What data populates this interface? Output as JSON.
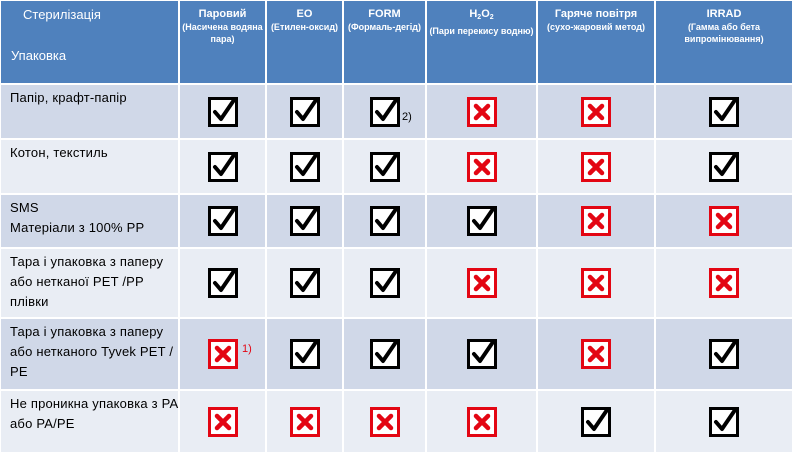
{
  "header": {
    "corner_top": "Стерилізація",
    "corner_bottom": "Упаковка",
    "columns": [
      {
        "title": "Паровий",
        "subtitle": "(Насичена водяна пара)"
      },
      {
        "title": "EO",
        "subtitle": "(Етилен-оксид)"
      },
      {
        "title": "FORM",
        "subtitle": "(Формаль-дегід)"
      },
      {
        "title_main": "H",
        "title_sub1": "2",
        "title_mid": "O",
        "title_sub2": "2",
        "subtitle": "(Пари перекису водню)"
      },
      {
        "title": "Гаряче повітря",
        "subtitle": "(сухо-жаровий метод)"
      },
      {
        "title": "IRRAD",
        "subtitle": "(Гамма або бета випромінювання)"
      }
    ]
  },
  "rows": [
    {
      "label": "Папір, крафт-папір",
      "marks": [
        "check",
        "check",
        "check",
        "cross",
        "cross",
        "check"
      ]
    },
    {
      "label": "Котон, текстиль",
      "marks": [
        "check",
        "check",
        "check",
        "cross",
        "cross",
        "check"
      ]
    },
    {
      "label_line1": "SMS",
      "label_line2": "Матеріали з 100% PP",
      "marks": [
        "check",
        "check",
        "check",
        "check",
        "cross",
        "cross"
      ]
    },
    {
      "label": "Тара і упаковка з паперу або нетканої PET /PP плівки",
      "marks": [
        "check",
        "check",
        "check",
        "cross",
        "cross",
        "cross"
      ]
    },
    {
      "label": "Тара і упаковка з паперу або нетканого Tyvek PET / PE",
      "marks": [
        "cross",
        "check",
        "check",
        "check",
        "cross",
        "check"
      ]
    },
    {
      "label": "Не проникна упаковка з PA або PA/PE",
      "marks": [
        "cross",
        "cross",
        "cross",
        "cross",
        "check",
        "check"
      ]
    }
  ],
  "notes": {
    "note_form_paper": "2)",
    "note_steam_tyvek": "1)"
  },
  "colors": {
    "header_bg": "#4f81bd",
    "row_odd_bg": "#d0d8e8",
    "row_even_bg": "#e9edf4",
    "check": "#000000",
    "cross": "#e30613"
  }
}
